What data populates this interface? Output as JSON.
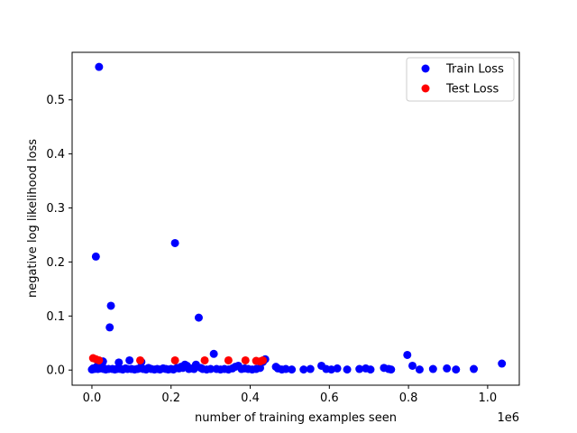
{
  "chart_data": {
    "type": "scatter",
    "title": "",
    "xlabel": "number of training examples seen",
    "ylabel": "negative log likelihood loss",
    "x_offset_label": "1e6",
    "xlim": [
      -50000,
      1080000
    ],
    "ylim": [
      -0.028,
      0.588
    ],
    "x_ticks": [
      0,
      200000,
      400000,
      600000,
      800000,
      1000000
    ],
    "x_tick_labels": [
      "0.0",
      "0.2",
      "0.4",
      "0.6",
      "0.8",
      "1.0"
    ],
    "y_ticks": [
      0.0,
      0.1,
      0.2,
      0.3,
      0.4,
      0.5
    ],
    "y_tick_labels": [
      "0.0",
      "0.1",
      "0.2",
      "0.3",
      "0.4",
      "0.5"
    ],
    "grid": false,
    "legend_position": "top-right",
    "series": [
      {
        "name": "Train Loss",
        "color": "#0000ff",
        "points": [
          [
            0,
            0.001
          ],
          [
            3000,
            0.003
          ],
          [
            6000,
            0.002
          ],
          [
            9000,
            0.004
          ],
          [
            10000,
            0.21
          ],
          [
            12000,
            0.006
          ],
          [
            15000,
            0.002
          ],
          [
            18000,
            0.561
          ],
          [
            20000,
            0.01
          ],
          [
            22000,
            0.003
          ],
          [
            26000,
            0.008
          ],
          [
            28000,
            0.016
          ],
          [
            30000,
            0.002
          ],
          [
            35000,
            0.001
          ],
          [
            42000,
            0.002
          ],
          [
            45000,
            0.079
          ],
          [
            48000,
            0.119
          ],
          [
            52000,
            0.002
          ],
          [
            58000,
            0.001
          ],
          [
            63000,
            0.002
          ],
          [
            68000,
            0.014
          ],
          [
            72000,
            0.002
          ],
          [
            78000,
            0.001
          ],
          [
            85000,
            0.003
          ],
          [
            90000,
            0.002
          ],
          [
            95000,
            0.018
          ],
          [
            100000,
            0.002
          ],
          [
            108000,
            0.001
          ],
          [
            115000,
            0.002
          ],
          [
            120000,
            0.003
          ],
          [
            125000,
            0.015
          ],
          [
            130000,
            0.002
          ],
          [
            137000,
            0.001
          ],
          [
            143000,
            0.004
          ],
          [
            150000,
            0.002
          ],
          [
            158000,
            0.001
          ],
          [
            165000,
            0.002
          ],
          [
            172000,
            0.001
          ],
          [
            180000,
            0.003
          ],
          [
            187000,
            0.002
          ],
          [
            193000,
            0.001
          ],
          [
            200000,
            0.002
          ],
          [
            206000,
            0.001
          ],
          [
            210000,
            0.235
          ],
          [
            215000,
            0.004
          ],
          [
            220000,
            0.003
          ],
          [
            225000,
            0.006
          ],
          [
            230000,
            0.004
          ],
          [
            235000,
            0.01
          ],
          [
            240000,
            0.008
          ],
          [
            245000,
            0.002
          ],
          [
            250000,
            0.003
          ],
          [
            258000,
            0.002
          ],
          [
            263000,
            0.01
          ],
          [
            270000,
            0.097
          ],
          [
            275000,
            0.004
          ],
          [
            280000,
            0.002
          ],
          [
            290000,
            0.001
          ],
          [
            300000,
            0.002
          ],
          [
            308000,
            0.03
          ],
          [
            315000,
            0.002
          ],
          [
            325000,
            0.001
          ],
          [
            335000,
            0.002
          ],
          [
            345000,
            0.001
          ],
          [
            355000,
            0.003
          ],
          [
            362000,
            0.006
          ],
          [
            370000,
            0.008
          ],
          [
            378000,
            0.002
          ],
          [
            386000,
            0.003
          ],
          [
            395000,
            0.002
          ],
          [
            405000,
            0.001
          ],
          [
            415000,
            0.002
          ],
          [
            425000,
            0.004
          ],
          [
            432000,
            0.015
          ],
          [
            438000,
            0.02
          ],
          [
            465000,
            0.006
          ],
          [
            470000,
            0.003
          ],
          [
            480000,
            0.001
          ],
          [
            490000,
            0.002
          ],
          [
            505000,
            0.001
          ],
          [
            535000,
            0.001
          ],
          [
            552000,
            0.002
          ],
          [
            580000,
            0.008
          ],
          [
            592000,
            0.002
          ],
          [
            605000,
            0.001
          ],
          [
            620000,
            0.003
          ],
          [
            645000,
            0.001
          ],
          [
            676000,
            0.002
          ],
          [
            692000,
            0.003
          ],
          [
            704000,
            0.001
          ],
          [
            738000,
            0.004
          ],
          [
            750000,
            0.002
          ],
          [
            756000,
            0.001
          ],
          [
            797000,
            0.028
          ],
          [
            810000,
            0.008
          ],
          [
            828000,
            0.001
          ],
          [
            862000,
            0.002
          ],
          [
            897000,
            0.003
          ],
          [
            920000,
            0.001
          ],
          [
            965000,
            0.002
          ],
          [
            1036000,
            0.012
          ]
        ]
      },
      {
        "name": "Test Loss",
        "color": "#ff0000",
        "points": [
          [
            3000,
            0.022
          ],
          [
            10000,
            0.02
          ],
          [
            18000,
            0.018
          ],
          [
            122000,
            0.018
          ],
          [
            210000,
            0.018
          ],
          [
            285000,
            0.018
          ],
          [
            345000,
            0.018
          ],
          [
            388000,
            0.018
          ],
          [
            415000,
            0.017
          ],
          [
            425000,
            0.016
          ],
          [
            432000,
            0.018
          ]
        ]
      }
    ]
  }
}
